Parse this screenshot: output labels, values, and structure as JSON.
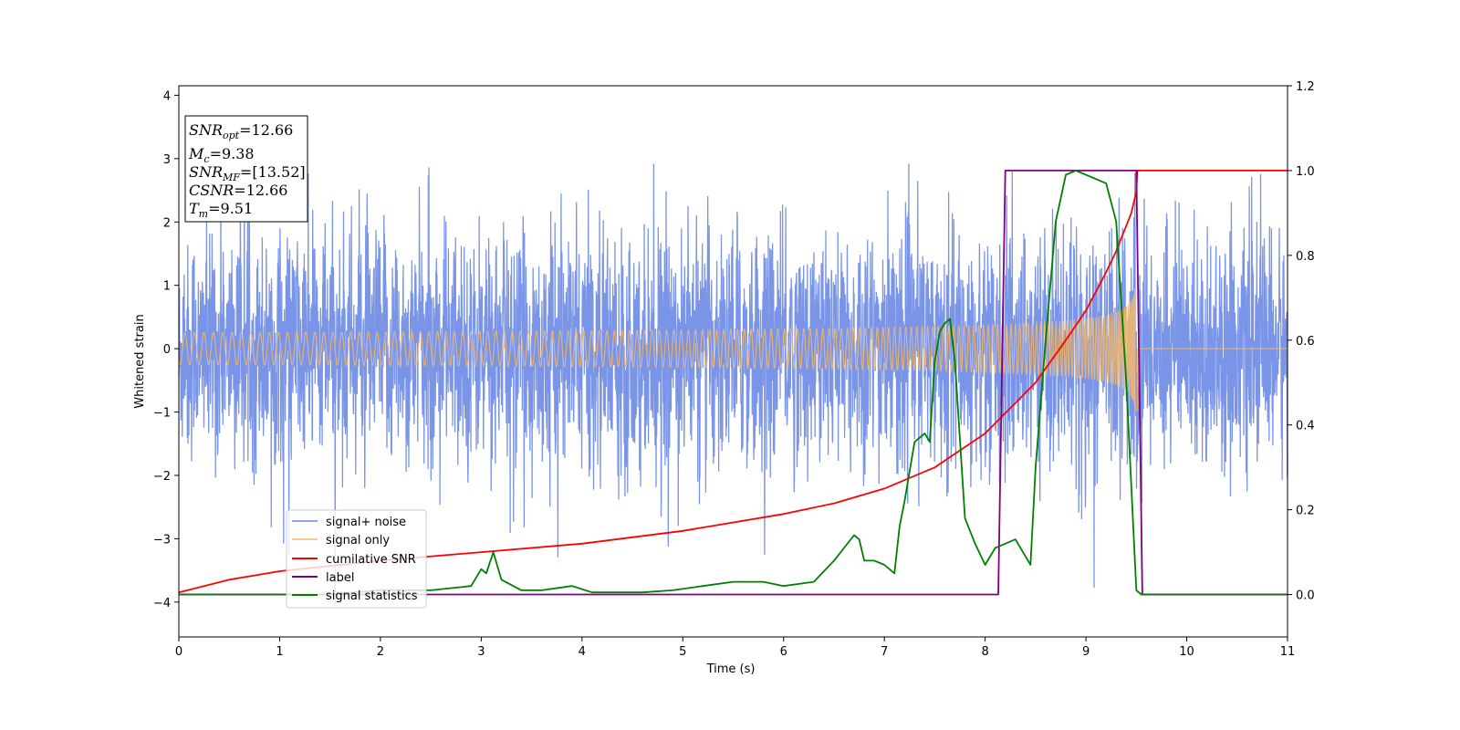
{
  "chart_data": {
    "type": "line",
    "xlabel": "Time (s)",
    "ylabel": "Whitened strain",
    "xlim": [
      0,
      11
    ],
    "ylim_left": [
      -4.55,
      4.15
    ],
    "ylim_right": [
      -0.1,
      1.2
    ],
    "x_ticks": [
      "0",
      "1",
      "2",
      "3",
      "4",
      "5",
      "6",
      "7",
      "8",
      "9",
      "10",
      "11"
    ],
    "y_ticks_left": [
      "−4",
      "−3",
      "−2",
      "−1",
      "0",
      "1",
      "2",
      "3",
      "4"
    ],
    "y_ticks_right": [
      "0.0",
      "0.2",
      "0.4",
      "0.6",
      "0.8",
      "1.0",
      "1.2"
    ],
    "grid": false,
    "legend_position": "lower-left",
    "series": [
      {
        "name": "signal+ noise",
        "color": "#6b8ae6",
        "axis": "left",
        "kind": "noise",
        "noise_sigma": 0.85,
        "spike_max": 3.75
      },
      {
        "name": "signal only",
        "color": "#f5b968",
        "axis": "left",
        "kind": "chirp",
        "merger_time": 9.51,
        "peak_amplitude": 1.0
      },
      {
        "name": "cumilative SNR",
        "color": "#ff0000",
        "axis": "right",
        "x": [
          0,
          0.5,
          1,
          2,
          3,
          4,
          5,
          6,
          6.5,
          7,
          7.5,
          8,
          8.5,
          8.8,
          9.0,
          9.2,
          9.3,
          9.4,
          9.45,
          9.5,
          9.51,
          11
        ],
        "y": [
          0.005,
          0.035,
          0.055,
          0.08,
          0.1,
          0.12,
          0.15,
          0.19,
          0.215,
          0.25,
          0.3,
          0.38,
          0.5,
          0.6,
          0.67,
          0.76,
          0.81,
          0.87,
          0.9,
          0.95,
          1.0,
          1.0
        ]
      },
      {
        "name": "label",
        "color": "#800080",
        "axis": "right",
        "x": [
          0,
          8.13,
          8.2,
          9.5,
          9.56,
          11
        ],
        "y": [
          0,
          0,
          1.0,
          1.0,
          0,
          0
        ]
      },
      {
        "name": "signal statistics",
        "color": "#008000",
        "axis": "right",
        "x": [
          0,
          0.5,
          1,
          1.5,
          2,
          2.5,
          2.9,
          3.0,
          3.05,
          3.12,
          3.2,
          3.4,
          3.6,
          3.9,
          4.1,
          4.3,
          4.6,
          4.9,
          5.2,
          5.5,
          5.8,
          6.0,
          6.3,
          6.5,
          6.7,
          6.75,
          6.8,
          6.9,
          7.0,
          7.1,
          7.15,
          7.2,
          7.3,
          7.4,
          7.45,
          7.5,
          7.55,
          7.6,
          7.65,
          7.7,
          7.8,
          7.9,
          8.0,
          8.1,
          8.2,
          8.3,
          8.4,
          8.45,
          8.5,
          8.6,
          8.7,
          8.8,
          8.9,
          9.0,
          9.1,
          9.2,
          9.3,
          9.4,
          9.5,
          9.55,
          11
        ],
        "y": [
          0.0,
          0.0,
          0.0,
          0.0,
          0.01,
          0.01,
          0.02,
          0.06,
          0.05,
          0.1,
          0.035,
          0.01,
          0.01,
          0.02,
          0.005,
          0.005,
          0.005,
          0.01,
          0.02,
          0.03,
          0.03,
          0.02,
          0.03,
          0.08,
          0.14,
          0.13,
          0.08,
          0.08,
          0.07,
          0.05,
          0.16,
          0.22,
          0.36,
          0.38,
          0.36,
          0.55,
          0.62,
          0.64,
          0.65,
          0.55,
          0.18,
          0.12,
          0.07,
          0.11,
          0.12,
          0.13,
          0.09,
          0.07,
          0.3,
          0.6,
          0.88,
          0.99,
          1.0,
          0.99,
          0.98,
          0.97,
          0.88,
          0.5,
          0.01,
          0.0,
          0.0
        ]
      }
    ],
    "annotation": {
      "snr_opt": {
        "base": "SNR",
        "sub": "opt",
        "value": "=12.66"
      },
      "mc": {
        "base": "M",
        "sub": "c",
        "value": "=9.38"
      },
      "snr_mf": {
        "base": "SNR",
        "sub": "MF",
        "value": "=[13.52]"
      },
      "csnr": {
        "base": "CSNR",
        "value": "=12.66"
      },
      "tm": {
        "base": "T",
        "sub": "m",
        "value": "=9.51"
      }
    }
  }
}
